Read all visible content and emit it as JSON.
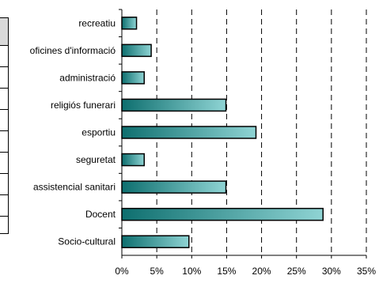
{
  "chart_data": {
    "type": "bar",
    "orientation": "horizontal",
    "categories": [
      "recreatiu",
      "oficines d'informació",
      "administració",
      "religiós funerari",
      "esportiu",
      "seguretat",
      "assistencial sanitari",
      "Docent",
      "Socio-cultural"
    ],
    "values": [
      2.1,
      4.2,
      3.2,
      14.9,
      19.2,
      3.2,
      14.9,
      28.8,
      9.6
    ],
    "xlim": [
      0,
      35
    ],
    "xticks": [
      "0%",
      "5%",
      "10%",
      "15%",
      "20%",
      "25%",
      "30%",
      "35%"
    ],
    "grid": "vertical dashed",
    "bar_gradient": [
      "#0e6f6f",
      "#8fd4d4"
    ],
    "title": "",
    "xlabel": "",
    "ylabel": ""
  }
}
